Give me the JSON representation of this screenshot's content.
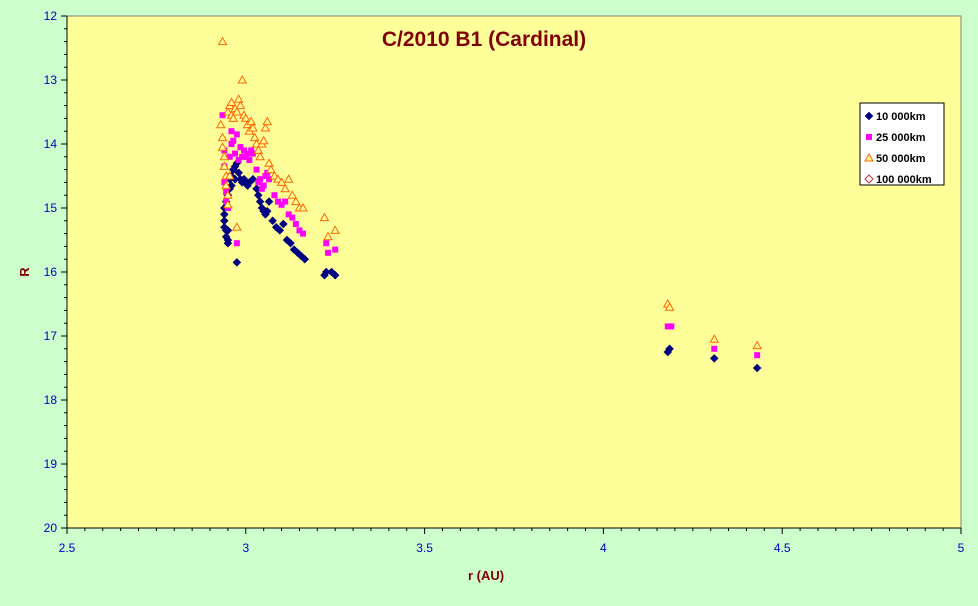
{
  "chart_data": {
    "type": "scatter",
    "title": "C/2010 B1 (Cardinal)",
    "xlabel": "r (AU)",
    "ylabel": "R",
    "xlim": [
      2.5,
      5
    ],
    "ylim": [
      20,
      12
    ],
    "y_inverted": true,
    "x_ticks": [
      "2.5",
      "3",
      "3.5",
      "4",
      "4.5",
      "5"
    ],
    "y_ticks": [
      "12",
      "13",
      "14",
      "15",
      "16",
      "17",
      "18",
      "19",
      "20"
    ],
    "grid": false,
    "legend_position": "right",
    "plot_background": "#ffff99",
    "page_background": "#ccffcc",
    "series": [
      {
        "name": "10 000km",
        "marker": "diamond",
        "color": "#000080",
        "points": [
          [
            2.94,
            15.1
          ],
          [
            2.94,
            15.2
          ],
          [
            2.94,
            15.3
          ],
          [
            2.945,
            15.35
          ],
          [
            2.945,
            15.45
          ],
          [
            2.95,
            15.5
          ],
          [
            2.95,
            15.55
          ],
          [
            2.94,
            15.0
          ],
          [
            2.945,
            14.9
          ],
          [
            2.95,
            14.8
          ],
          [
            2.955,
            14.7
          ],
          [
            2.96,
            14.65
          ],
          [
            2.955,
            14.55
          ],
          [
            2.96,
            14.5
          ],
          [
            2.965,
            14.4
          ],
          [
            2.97,
            14.35
          ],
          [
            2.975,
            14.3
          ],
          [
            2.98,
            14.45
          ],
          [
            2.985,
            14.55
          ],
          [
            2.99,
            14.6
          ],
          [
            2.995,
            14.55
          ],
          [
            3.0,
            14.6
          ],
          [
            3.005,
            14.65
          ],
          [
            3.01,
            14.6
          ],
          [
            2.97,
            14.55
          ],
          [
            2.975,
            15.85
          ],
          [
            2.95,
            15.35
          ],
          [
            3.02,
            14.55
          ],
          [
            3.03,
            14.7
          ],
          [
            3.035,
            14.8
          ],
          [
            3.04,
            14.9
          ],
          [
            3.045,
            15.0
          ],
          [
            3.05,
            15.05
          ],
          [
            3.055,
            15.1
          ],
          [
            3.06,
            15.05
          ],
          [
            3.065,
            14.9
          ],
          [
            3.075,
            15.2
          ],
          [
            3.085,
            15.3
          ],
          [
            3.095,
            15.35
          ],
          [
            3.105,
            15.25
          ],
          [
            3.115,
            15.5
          ],
          [
            3.125,
            15.55
          ],
          [
            3.135,
            15.65
          ],
          [
            3.145,
            15.7
          ],
          [
            3.155,
            15.75
          ],
          [
            3.165,
            15.8
          ],
          [
            3.22,
            16.05
          ],
          [
            3.225,
            16.0
          ],
          [
            3.25,
            16.05
          ],
          [
            3.24,
            16.0
          ],
          [
            4.18,
            17.25
          ],
          [
            4.185,
            17.2
          ],
          [
            4.31,
            17.35
          ],
          [
            4.43,
            17.5
          ]
        ]
      },
      {
        "name": "25 000km",
        "marker": "square",
        "color": "#ff00ff",
        "points": [
          [
            2.935,
            13.55
          ],
          [
            2.94,
            14.1
          ],
          [
            2.94,
            14.35
          ],
          [
            2.94,
            14.6
          ],
          [
            2.945,
            14.75
          ],
          [
            2.945,
            14.9
          ],
          [
            2.95,
            15.0
          ],
          [
            2.95,
            14.5
          ],
          [
            2.955,
            14.2
          ],
          [
            2.96,
            14.0
          ],
          [
            2.96,
            13.8
          ],
          [
            2.965,
            13.95
          ],
          [
            2.97,
            14.15
          ],
          [
            2.975,
            13.85
          ],
          [
            2.98,
            14.25
          ],
          [
            2.985,
            14.05
          ],
          [
            2.99,
            14.2
          ],
          [
            2.995,
            14.1
          ],
          [
            3.0,
            14.2
          ],
          [
            3.005,
            14.15
          ],
          [
            3.01,
            14.25
          ],
          [
            3.015,
            14.1
          ],
          [
            3.02,
            14.15
          ],
          [
            3.03,
            14.4
          ],
          [
            3.035,
            14.6
          ],
          [
            3.04,
            14.55
          ],
          [
            3.045,
            14.7
          ],
          [
            3.05,
            14.65
          ],
          [
            3.055,
            14.5
          ],
          [
            3.06,
            14.45
          ],
          [
            3.065,
            14.55
          ],
          [
            2.975,
            15.55
          ],
          [
            3.08,
            14.8
          ],
          [
            3.09,
            14.9
          ],
          [
            3.1,
            14.95
          ],
          [
            3.11,
            14.9
          ],
          [
            3.12,
            15.1
          ],
          [
            3.13,
            15.15
          ],
          [
            3.14,
            15.25
          ],
          [
            3.15,
            15.35
          ],
          [
            3.16,
            15.4
          ],
          [
            3.225,
            15.55
          ],
          [
            3.23,
            15.7
          ],
          [
            3.25,
            15.65
          ],
          [
            4.18,
            16.85
          ],
          [
            4.19,
            16.85
          ],
          [
            4.31,
            17.2
          ],
          [
            4.43,
            17.3
          ]
        ]
      },
      {
        "name": "50 000km",
        "marker": "triangle",
        "color": "#ff6600",
        "points": [
          [
            2.935,
            12.4
          ],
          [
            2.93,
            13.7
          ],
          [
            2.935,
            13.9
          ],
          [
            2.935,
            14.05
          ],
          [
            2.94,
            14.2
          ],
          [
            2.94,
            14.35
          ],
          [
            2.945,
            14.5
          ],
          [
            2.945,
            14.65
          ],
          [
            2.95,
            14.8
          ],
          [
            2.95,
            14.95
          ],
          [
            2.95,
            13.5
          ],
          [
            2.955,
            13.4
          ],
          [
            2.96,
            13.35
          ],
          [
            2.96,
            13.55
          ],
          [
            2.965,
            13.6
          ],
          [
            2.97,
            13.45
          ],
          [
            2.975,
            13.5
          ],
          [
            2.98,
            13.3
          ],
          [
            2.985,
            13.4
          ],
          [
            2.99,
            13.0
          ],
          [
            2.995,
            13.55
          ],
          [
            3.0,
            13.6
          ],
          [
            3.005,
            13.7
          ],
          [
            3.01,
            13.8
          ],
          [
            3.015,
            13.65
          ],
          [
            3.02,
            13.75
          ],
          [
            3.025,
            13.9
          ],
          [
            3.03,
            14.0
          ],
          [
            3.035,
            14.1
          ],
          [
            3.04,
            14.2
          ],
          [
            3.045,
            14.0
          ],
          [
            3.05,
            13.95
          ],
          [
            3.055,
            13.75
          ],
          [
            3.06,
            13.65
          ],
          [
            3.065,
            14.3
          ],
          [
            3.07,
            14.4
          ],
          [
            3.08,
            14.5
          ],
          [
            3.09,
            14.55
          ],
          [
            3.1,
            14.6
          ],
          [
            3.11,
            14.7
          ],
          [
            3.12,
            14.55
          ],
          [
            3.13,
            14.8
          ],
          [
            3.14,
            14.9
          ],
          [
            3.15,
            15.0
          ],
          [
            3.16,
            15.0
          ],
          [
            2.975,
            15.3
          ],
          [
            2.955,
            14.5
          ],
          [
            3.22,
            15.15
          ],
          [
            3.23,
            15.45
          ],
          [
            3.25,
            15.35
          ],
          [
            4.18,
            16.5
          ],
          [
            4.185,
            16.55
          ],
          [
            4.31,
            17.05
          ],
          [
            4.43,
            17.15
          ]
        ]
      },
      {
        "name": "100 000km",
        "marker": "diamond-open",
        "color": "#cc3333",
        "points": []
      }
    ]
  }
}
